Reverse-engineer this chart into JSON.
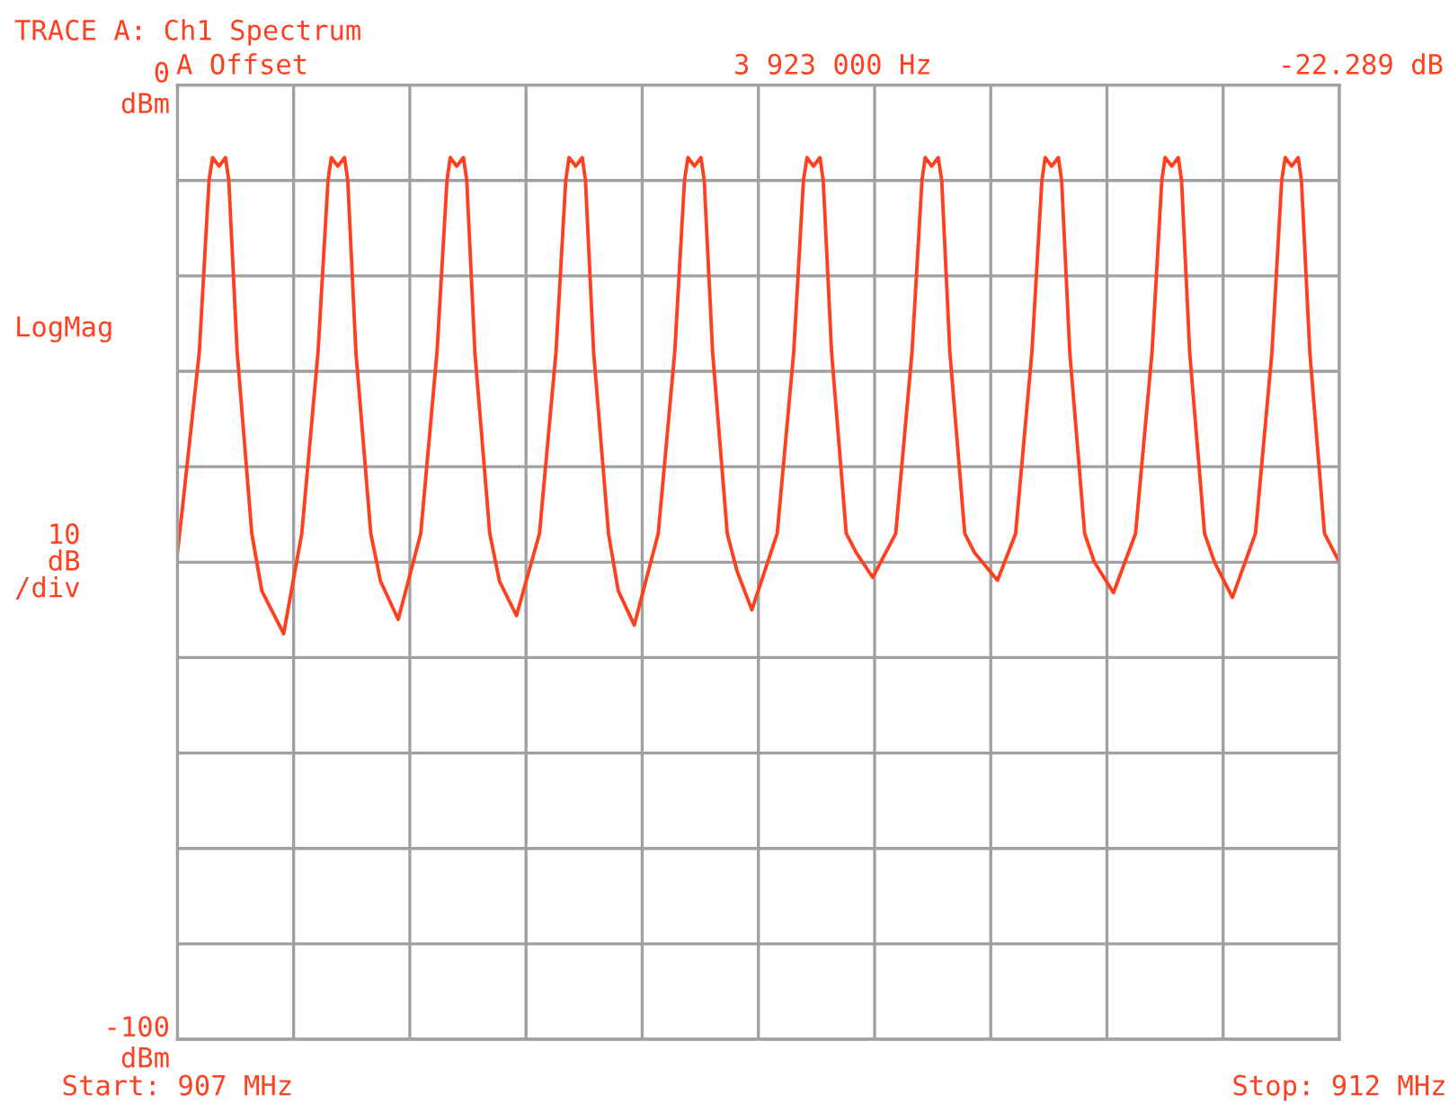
{
  "chart_data": {
    "type": "line",
    "title": "TRACE A: Ch1 Spectrum",
    "subtitle": "A Offset",
    "annotations": [
      "3 923 000 Hz",
      "-22.289 dB",
      "LogMag",
      "10\ndB\n/div"
    ],
    "xlim": [
      907,
      912
    ],
    "ylim": [
      -100,
      0
    ],
    "xticks": [
      {
        "value": 907,
        "label": "Start: 907 MHz"
      },
      {
        "value": 907.5,
        "label": null
      },
      {
        "value": 908,
        "label": null
      },
      {
        "value": 908.5,
        "label": null
      },
      {
        "value": 909,
        "label": null
      },
      {
        "value": 909.5,
        "label": null
      },
      {
        "value": 910,
        "label": null
      },
      {
        "value": 910.5,
        "label": null
      },
      {
        "value": 911,
        "label": null
      },
      {
        "value": 911.5,
        "label": null
      },
      {
        "value": 912,
        "label": "Stop: 912 MHz"
      }
    ],
    "yticks": [
      {
        "value": 0,
        "label": "0\ndBm"
      },
      {
        "value": -10,
        "label": null
      },
      {
        "value": -20,
        "label": null
      },
      {
        "value": -30,
        "label": null
      },
      {
        "value": -40,
        "label": null
      },
      {
        "value": -50,
        "label": null
      },
      {
        "value": -60,
        "label": null
      },
      {
        "value": -70,
        "label": null
      },
      {
        "value": -80,
        "label": null
      },
      {
        "value": -90,
        "label": null
      },
      {
        "value": -100,
        "label": "-100\ndBm"
      }
    ],
    "grid": true,
    "marker": "none",
    "line_style": "solid",
    "series": [
      {
        "color": "#ff4020",
        "x": [
          907.0,
          907.023,
          907.094,
          907.136,
          907.151,
          907.179,
          907.207,
          907.221,
          907.257,
          907.32,
          907.363,
          907.457,
          907.535,
          907.605,
          907.648,
          907.662,
          907.69,
          907.719,
          907.733,
          907.768,
          907.832,
          907.874,
          907.95,
          908.047,
          908.117,
          908.16,
          908.174,
          908.202,
          908.231,
          908.245,
          908.28,
          908.344,
          908.386,
          908.459,
          908.558,
          908.629,
          908.671,
          908.685,
          908.714,
          908.742,
          908.756,
          908.791,
          908.855,
          908.897,
          908.966,
          909.069,
          909.14,
          909.182,
          909.197,
          909.225,
          909.253,
          909.267,
          909.303,
          909.366,
          909.409,
          909.472,
          909.581,
          909.652,
          909.694,
          909.709,
          909.737,
          909.765,
          909.779,
          909.815,
          909.878,
          909.921,
          909.992,
          910.091,
          910.161,
          910.204,
          910.218,
          910.246,
          910.274,
          910.289,
          910.324,
          910.388,
          910.43,
          910.529,
          910.607,
          910.677,
          910.72,
          910.734,
          910.762,
          910.791,
          910.805,
          910.84,
          910.904,
          910.946,
          911.028,
          911.123,
          911.194,
          911.236,
          911.25,
          911.279,
          911.307,
          911.321,
          911.356,
          911.42,
          911.463,
          911.54,
          911.639,
          911.71,
          911.752,
          911.767,
          911.795,
          911.823,
          911.837,
          911.873,
          911.936,
          912.0
        ],
        "values": [
          -49,
          -44,
          -28,
          -10,
          -7.6,
          -8.5,
          -7.6,
          -10,
          -28,
          -47,
          -53,
          -57.5,
          -47,
          -28,
          -10,
          -7.6,
          -8.5,
          -7.6,
          -10,
          -28,
          -47,
          -52,
          -56,
          -47,
          -28,
          -10,
          -7.6,
          -8.5,
          -7.6,
          -10,
          -28,
          -47,
          -52,
          -55.6,
          -47,
          -28,
          -10,
          -7.6,
          -8.5,
          -7.6,
          -10,
          -28,
          -47,
          -53,
          -56.6,
          -47,
          -28,
          -10,
          -7.6,
          -8.5,
          -7.6,
          -10,
          -28,
          -47,
          -51,
          -55,
          -47,
          -28,
          -10,
          -7.6,
          -8.5,
          -7.6,
          -10,
          -28,
          -47,
          -49,
          -51.6,
          -47,
          -28,
          -10,
          -7.6,
          -8.5,
          -7.6,
          -10,
          -28,
          -47,
          -49,
          -51.9,
          -47,
          -28,
          -10,
          -7.6,
          -8.5,
          -7.6,
          -10,
          -28,
          -47,
          -50,
          -53.2,
          -47,
          -28,
          -10,
          -7.6,
          -8.5,
          -7.6,
          -10,
          -28,
          -47,
          -50,
          -53.7,
          -47,
          -28,
          -10,
          -7.6,
          -8.5,
          -7.6,
          -10,
          -28,
          -47,
          -50
        ]
      }
    ]
  }
}
